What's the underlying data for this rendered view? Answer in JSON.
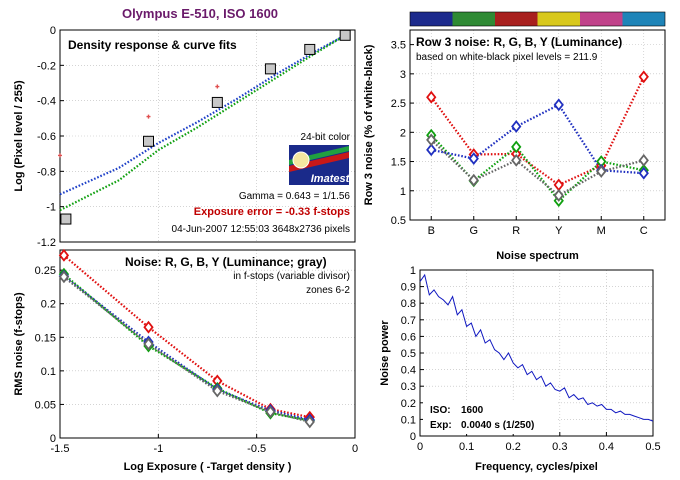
{
  "figure_title": "Olympus E-510, ISO 1600",
  "chart_data": [
    {
      "id": "density",
      "type": "scatter",
      "title": "Density response & curve fits",
      "xlabel": "",
      "ylabel": "Log (Pixel level / 255)",
      "xlim": [
        -1.5,
        0
      ],
      "ylim": [
        -1.2,
        0
      ],
      "xticks": [
        -1.5,
        -1,
        -0.5,
        0
      ],
      "yticks": [
        -1.2,
        -1,
        -0.8,
        -0.6,
        -0.4,
        -0.2,
        0
      ],
      "grid": true,
      "series": [
        {
          "role": "gray-patches",
          "color": "#444444",
          "x": [
            -1.47,
            -1.05,
            -0.7,
            -0.43,
            -0.23,
            -0.05
          ],
          "y": [
            -1.07,
            -0.63,
            -0.41,
            -0.22,
            -0.11,
            -0.03
          ]
        },
        {
          "role": "red-points",
          "color": "#e05050",
          "x": [
            -1.5,
            -1.05,
            -0.7
          ],
          "y": [
            -0.71,
            -0.49,
            -0.32
          ]
        }
      ],
      "fits": [
        {
          "color": "#1e40c8",
          "x": [
            -1.5,
            -1.2,
            -1.0,
            -0.8,
            -0.6,
            -0.4,
            -0.2,
            -0.05
          ],
          "y": [
            -0.93,
            -0.78,
            -0.64,
            -0.52,
            -0.39,
            -0.25,
            -0.12,
            -0.03
          ]
        },
        {
          "color": "#10a010",
          "x": [
            -1.5,
            -1.2,
            -1.0,
            -0.8,
            -0.6,
            -0.4,
            -0.2,
            -0.05
          ],
          "y": [
            -1.02,
            -0.85,
            -0.68,
            -0.55,
            -0.41,
            -0.27,
            -0.13,
            -0.03
          ]
        }
      ],
      "annotations": {
        "bit_depth": "24-bit color",
        "logo": "Imatest",
        "gamma": "Gamma = 0.643 = 1/1.56",
        "exposure_error": "Exposure error = -0.33 f-stops",
        "timestamp": "04-Jun-2007 12:55:03   3648x2736 pixels"
      }
    },
    {
      "id": "noise-rgby",
      "type": "line",
      "title": "Noise: R, G, B, Y (Luminance; gray)",
      "subtitle_1": "in f-stops (variable divisor)",
      "subtitle_2": "zones 6-2",
      "xlabel": "Log Exposure ( -Target density )",
      "ylabel": "RMS noise (f-stops)",
      "xlim": [
        -1.5,
        0
      ],
      "ylim": [
        0,
        0.28
      ],
      "xticks": [
        -1.5,
        -1,
        -0.5,
        0
      ],
      "yticks": [
        0,
        0.05,
        0.1,
        0.15,
        0.2,
        0.25
      ],
      "grid": true,
      "x": [
        -1.48,
        -1.05,
        -0.7,
        -0.43,
        -0.23
      ],
      "series": [
        {
          "name": "R",
          "color": "#e01010",
          "values": [
            0.272,
            0.165,
            0.085,
            0.043,
            0.031
          ]
        },
        {
          "name": "G",
          "color": "#10a010",
          "values": [
            0.244,
            0.137,
            0.074,
            0.037,
            0.026
          ]
        },
        {
          "name": "B",
          "color": "#2030c0",
          "values": [
            0.241,
            0.143,
            0.072,
            0.041,
            0.027
          ]
        },
        {
          "name": "Y",
          "color": "#666666",
          "values": [
            0.24,
            0.14,
            0.07,
            0.039,
            0.024
          ]
        }
      ]
    },
    {
      "id": "row3-noise",
      "type": "line",
      "title": "Row 3 noise: R, G, B, Y (Luminance)",
      "subtitle": "based on white-black pixel levels = 211.9",
      "xlabel": "Noise spectrum",
      "ylabel": "Row 3 noise (% of white-black)",
      "ylim": [
        0.5,
        3.75
      ],
      "yticks": [
        0.5,
        1,
        1.5,
        2,
        2.5,
        3,
        3.5
      ],
      "categories": [
        "B",
        "G",
        "R",
        "Y",
        "M",
        "C"
      ],
      "color_bar": [
        "#1c2a8c",
        "#2f8a34",
        "#a8201e",
        "#d8c81c",
        "#c0428a",
        "#1e84b8"
      ],
      "grid": true,
      "series": [
        {
          "name": "R",
          "color": "#e01010",
          "values": [
            2.6,
            1.62,
            1.63,
            1.1,
            1.43,
            2.95
          ]
        },
        {
          "name": "G",
          "color": "#10a010",
          "values": [
            1.95,
            1.17,
            1.75,
            0.83,
            1.5,
            1.35
          ]
        },
        {
          "name": "B",
          "color": "#2030c0",
          "values": [
            1.7,
            1.55,
            2.1,
            2.47,
            1.35,
            1.3
          ]
        },
        {
          "name": "Y",
          "color": "#666666",
          "values": [
            1.87,
            1.18,
            1.52,
            0.92,
            1.33,
            1.52
          ]
        }
      ]
    },
    {
      "id": "noise-power",
      "type": "line",
      "title": "",
      "xlabel": "Frequency, cycles/pixel",
      "ylabel": "Noise power",
      "xlim": [
        0,
        0.5
      ],
      "ylim": [
        0,
        1
      ],
      "xticks": [
        0,
        0.1,
        0.2,
        0.3,
        0.4,
        0.5
      ],
      "yticks": [
        0,
        0.1,
        0.2,
        0.3,
        0.4,
        0.5,
        0.6,
        0.7,
        0.8,
        0.9,
        1
      ],
      "grid": true,
      "info": {
        "iso_label": "ISO:",
        "iso_value": "1600",
        "exp_label": "Exp:",
        "exp_value": "0.0040 s  (1/250)"
      },
      "series": [
        {
          "color": "#1018c0",
          "x": [
            0,
            0.01,
            0.02,
            0.03,
            0.04,
            0.05,
            0.06,
            0.07,
            0.08,
            0.09,
            0.1,
            0.11,
            0.12,
            0.13,
            0.14,
            0.15,
            0.16,
            0.17,
            0.18,
            0.19,
            0.2,
            0.21,
            0.22,
            0.23,
            0.24,
            0.25,
            0.26,
            0.27,
            0.28,
            0.29,
            0.3,
            0.31,
            0.32,
            0.33,
            0.34,
            0.35,
            0.36,
            0.37,
            0.38,
            0.39,
            0.4,
            0.41,
            0.42,
            0.43,
            0.44,
            0.45,
            0.46,
            0.47,
            0.48,
            0.49,
            0.5
          ],
          "y": [
            0.93,
            0.97,
            0.85,
            0.88,
            0.84,
            0.82,
            0.79,
            0.84,
            0.73,
            0.76,
            0.66,
            0.68,
            0.6,
            0.64,
            0.56,
            0.58,
            0.52,
            0.5,
            0.46,
            0.5,
            0.44,
            0.41,
            0.43,
            0.37,
            0.39,
            0.34,
            0.36,
            0.3,
            0.32,
            0.28,
            0.27,
            0.29,
            0.23,
            0.25,
            0.22,
            0.23,
            0.19,
            0.2,
            0.18,
            0.19,
            0.16,
            0.16,
            0.14,
            0.15,
            0.13,
            0.13,
            0.12,
            0.11,
            0.1,
            0.1,
            0.09
          ]
        }
      ]
    }
  ]
}
